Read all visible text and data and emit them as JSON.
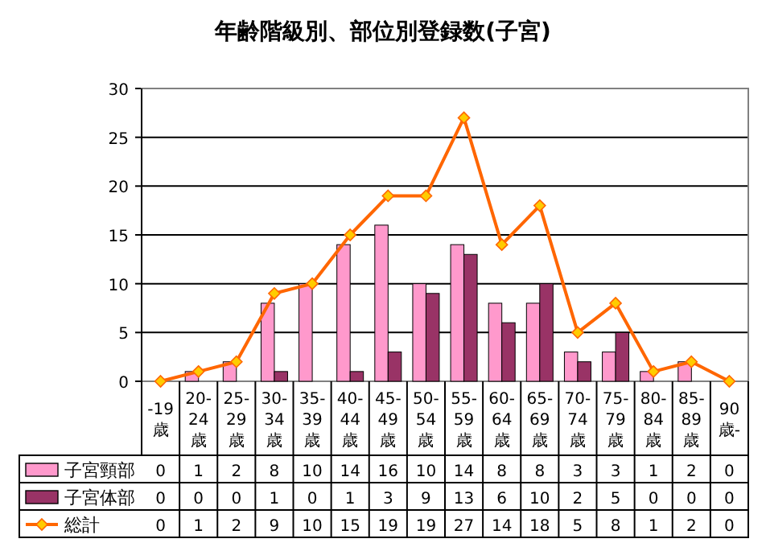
{
  "chart_data": {
    "type": "bar",
    "title": "年齢階級別、部位別登録数(子宮)",
    "categories": [
      "-19歳",
      "20-24歳",
      "25-29歳",
      "30-34歳",
      "35-39歳",
      "40-44歳",
      "45-49歳",
      "50-54歳",
      "55-59歳",
      "60-64歳",
      "65-69歳",
      "70-74歳",
      "75-79歳",
      "80-84歳",
      "85-89歳",
      "90歳-"
    ],
    "series": [
      {
        "name": "子宮頸部",
        "color": "#ff99cc",
        "values": [
          0,
          1,
          2,
          8,
          10,
          14,
          16,
          10,
          14,
          8,
          8,
          3,
          3,
          1,
          2,
          0
        ]
      },
      {
        "name": "子宮体部",
        "color": "#993366",
        "values": [
          0,
          0,
          0,
          1,
          0,
          1,
          3,
          9,
          13,
          6,
          10,
          2,
          5,
          0,
          0,
          0
        ]
      },
      {
        "name": "総計",
        "type": "line",
        "color": "#ff6600",
        "marker": "diamond",
        "values": [
          0,
          1,
          2,
          9,
          10,
          15,
          19,
          19,
          27,
          14,
          18,
          5,
          8,
          1,
          2,
          0
        ]
      }
    ],
    "ylim": [
      0,
      30
    ],
    "yticks": [
      0,
      5,
      10,
      15,
      20,
      25,
      30
    ],
    "grid": "y",
    "legend": "bottom",
    "data_labels": true
  }
}
